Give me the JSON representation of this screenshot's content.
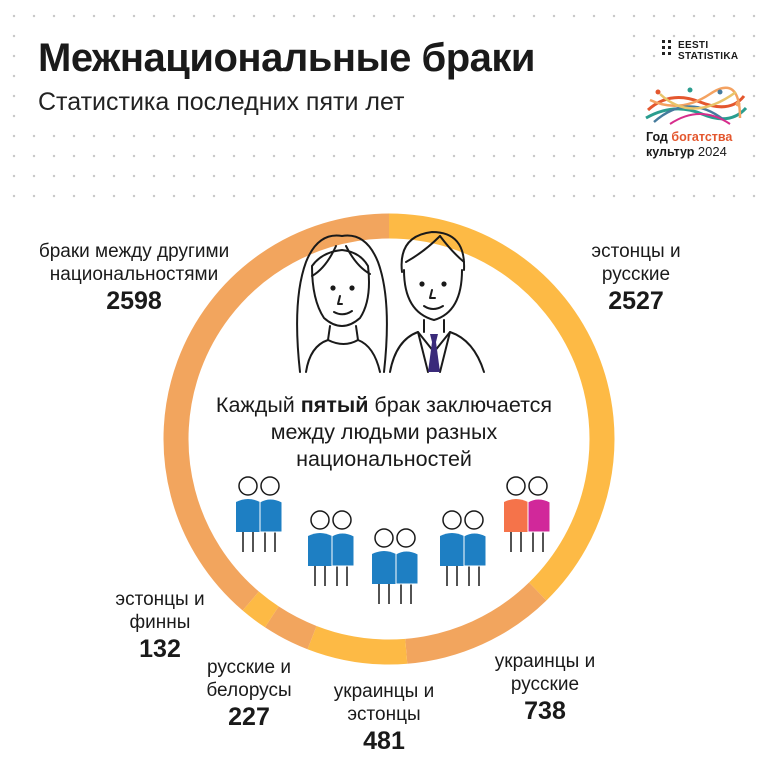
{
  "header": {
    "title": "Межнациональные браки",
    "subtitle": "Статистика последних пяти лет"
  },
  "logos": {
    "statistics": [
      "EESTI",
      "STATISTIKA"
    ],
    "year_line1_a": "Год ",
    "year_line1_b": "богатства",
    "year_line2_a": "культур ",
    "year_line2_b": "2024"
  },
  "center": {
    "text_before": "Каждый ",
    "text_bold": "пятый",
    "text_after": " брак заключается",
    "line2": "между людьми разных",
    "line3": "национальностей"
  },
  "colors": {
    "estonians_russians": "#FDBA45",
    "ukrainians_russians": "#F2A55E",
    "ukrainians_estonians": "#FDBA45",
    "russians_belarusians": "#F2A55E",
    "estonians_finns": "#FDBA45",
    "other": "#F2A55E",
    "figure_blue": "#1E7FC3",
    "figure_orange": "#F5734A",
    "figure_magenta": "#D1289A",
    "tie": "#3A2A7A"
  },
  "chart_data": {
    "type": "pie",
    "donut": true,
    "slices": [
      {
        "name": "эстонцы и русские",
        "value": 2527
      },
      {
        "name": "украинцы и русские",
        "value": 738
      },
      {
        "name": "украинцы и эстонцы",
        "value": 481
      },
      {
        "name": "русские и белорусы",
        "value": 227
      },
      {
        "name": "эстонцы и финны",
        "value": 132
      },
      {
        "name": "браки между другими национальностями",
        "value": 2598
      }
    ]
  },
  "labels": {
    "other_line1": "браки между другими",
    "other_line2": "национальностями",
    "other_value": "2598",
    "est_rus_line1": "эстонцы и",
    "est_rus_line2": "русские",
    "est_rus_value": "2527",
    "est_fin_line1": "эстонцы и",
    "est_fin_line2": "финны",
    "est_fin_value": "132",
    "rus_bel_line1": "русские и",
    "rus_bel_line2": "белорусы",
    "rus_bel_value": "227",
    "ukr_est_line1": "украинцы и",
    "ukr_est_line2": "эстонцы",
    "ukr_est_value": "481",
    "ukr_rus_line1": "украинцы и",
    "ukr_rus_line2": "русские",
    "ukr_rus_value": "738"
  }
}
